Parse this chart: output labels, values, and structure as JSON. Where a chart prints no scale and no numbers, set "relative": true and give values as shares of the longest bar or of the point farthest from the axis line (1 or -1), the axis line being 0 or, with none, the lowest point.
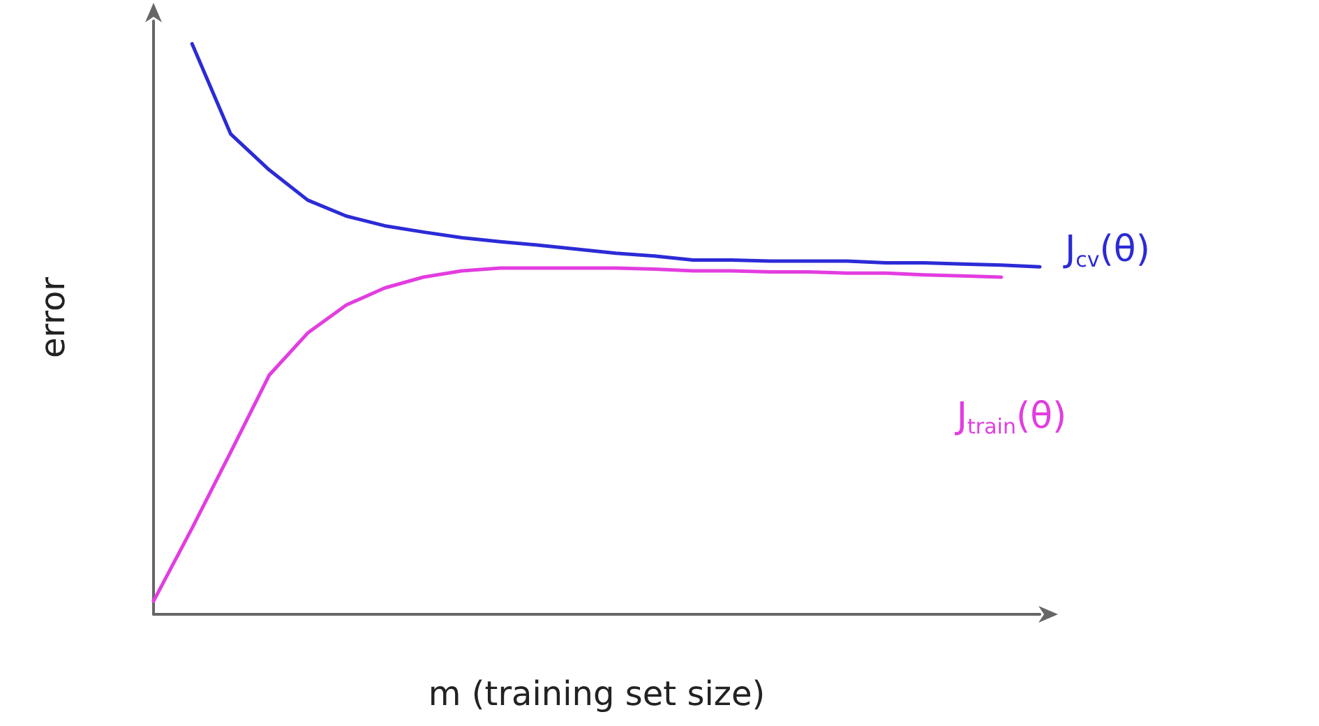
{
  "chart_data": {
    "type": "line",
    "relative": true,
    "xlabel": "m (training set size)",
    "ylabel": "error",
    "grid": false,
    "legend": false,
    "marker": "none",
    "line_style": "solid",
    "categories": [
      null,
      null,
      null,
      null,
      null,
      null,
      null,
      null,
      null,
      null,
      null,
      null,
      null,
      null,
      null,
      null,
      null,
      null,
      null,
      null,
      null,
      null,
      null,
      null
    ],
    "series": [
      {
        "name": "J$_{cv}$(θ)",
        "color": "#2b2bd6",
        "values": [
          null,
          1,
          0.842,
          0.779,
          0.726,
          0.698,
          0.681,
          0.67,
          0.66,
          0.653,
          0.647,
          0.64,
          0.633,
          0.628,
          0.621,
          0.621,
          0.619,
          0.619,
          0.619,
          0.616,
          0.616,
          0.614,
          0.612,
          0.609
        ]
      },
      {
        "name": "J$_{train}$(θ)",
        "color": "#e23de0",
        "values": [
          0.023,
          0.151,
          0.284,
          0.419,
          0.493,
          0.542,
          0.572,
          0.591,
          0.602,
          0.607,
          0.607,
          0.607,
          0.607,
          0.605,
          0.602,
          0.602,
          0.6,
          0.6,
          0.598,
          0.598,
          0.595,
          0.593,
          0.591,
          null
        ]
      }
    ]
  }
}
